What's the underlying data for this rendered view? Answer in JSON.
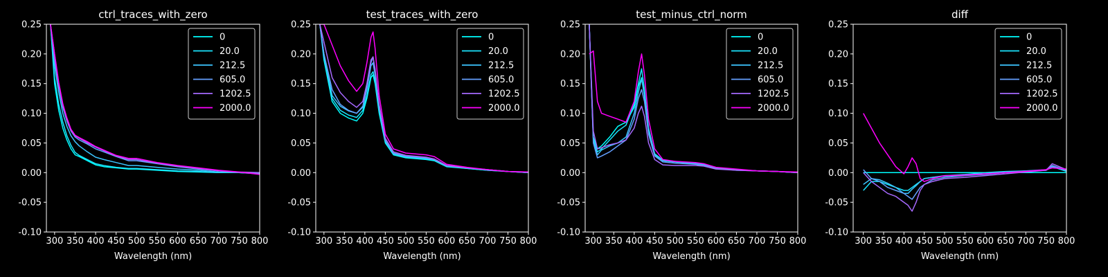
{
  "colors": {
    "background": "#000000",
    "axes": "#ffffff",
    "series": [
      "#00ffff",
      "#1ae5ff",
      "#3bc4ff",
      "#64a0ff",
      "#a669ff",
      "#ff00ff"
    ]
  },
  "chart_data": [
    {
      "type": "line",
      "title": "ctrl_traces_with_zero",
      "xlabel": "Wavelength (nm)",
      "ylabel": "",
      "xlim": [
        280,
        800
      ],
      "ylim": [
        -0.1,
        0.25
      ],
      "xticks": [
        300,
        350,
        400,
        450,
        500,
        550,
        600,
        650,
        700,
        750,
        800
      ],
      "yticks": [
        -0.1,
        -0.05,
        0.0,
        0.05,
        0.1,
        0.15,
        0.2,
        0.25
      ],
      "legend": "top-right",
      "x": [
        290,
        300,
        310,
        320,
        330,
        340,
        350,
        360,
        380,
        400,
        420,
        450,
        480,
        500,
        550,
        600,
        650,
        700,
        750,
        800
      ],
      "series": [
        {
          "name": "0",
          "values": [
            0.25,
            0.15,
            0.105,
            0.075,
            0.055,
            0.04,
            0.03,
            0.027,
            0.02,
            0.013,
            0.01,
            0.008,
            0.006,
            0.006,
            0.004,
            0.002,
            0.001,
            0.0,
            0.0,
            -0.002
          ]
        },
        {
          "name": "20.0",
          "values": [
            0.25,
            0.16,
            0.115,
            0.085,
            0.062,
            0.046,
            0.034,
            0.029,
            0.022,
            0.015,
            0.012,
            0.009,
            0.007,
            0.007,
            0.005,
            0.003,
            0.002,
            0.0,
            0.0,
            -0.002
          ]
        },
        {
          "name": "212.5",
          "values": [
            0.25,
            0.18,
            0.135,
            0.1,
            0.078,
            0.062,
            0.052,
            0.045,
            0.035,
            0.026,
            0.022,
            0.017,
            0.012,
            0.012,
            0.009,
            0.006,
            0.004,
            0.001,
            0.0,
            -0.001
          ]
        },
        {
          "name": "605.0",
          "values": [
            0.25,
            0.19,
            0.145,
            0.11,
            0.087,
            0.07,
            0.06,
            0.055,
            0.048,
            0.04,
            0.035,
            0.027,
            0.02,
            0.02,
            0.015,
            0.01,
            0.006,
            0.003,
            0.0,
            -0.001
          ]
        },
        {
          "name": "1202.5",
          "values": [
            0.25,
            0.2,
            0.15,
            0.115,
            0.09,
            0.072,
            0.062,
            0.058,
            0.05,
            0.043,
            0.037,
            0.028,
            0.022,
            0.022,
            0.016,
            0.011,
            0.007,
            0.003,
            0.001,
            0.0
          ]
        },
        {
          "name": "2000.0",
          "values": [
            0.25,
            0.2,
            0.152,
            0.116,
            0.092,
            0.073,
            0.063,
            0.059,
            0.052,
            0.044,
            0.038,
            0.029,
            0.024,
            0.024,
            0.017,
            0.012,
            0.008,
            0.004,
            0.001,
            -0.003
          ]
        }
      ]
    },
    {
      "type": "line",
      "title": "test_traces_with_zero",
      "xlabel": "Wavelength (nm)",
      "ylabel": "",
      "xlim": [
        280,
        800
      ],
      "ylim": [
        -0.1,
        0.25
      ],
      "xticks": [
        300,
        350,
        400,
        450,
        500,
        550,
        600,
        650,
        700,
        750,
        800
      ],
      "yticks": [
        -0.1,
        -0.05,
        0.0,
        0.05,
        0.1,
        0.15,
        0.2,
        0.25
      ],
      "legend": "top-right",
      "x": [
        290,
        300,
        320,
        340,
        360,
        380,
        395,
        405,
        415,
        420,
        425,
        435,
        450,
        470,
        500,
        550,
        570,
        600,
        650,
        700,
        750,
        800
      ],
      "series": [
        {
          "name": "0",
          "values": [
            0.25,
            0.19,
            0.12,
            0.1,
            0.092,
            0.087,
            0.1,
            0.125,
            0.16,
            0.165,
            0.15,
            0.1,
            0.05,
            0.03,
            0.025,
            0.022,
            0.02,
            0.01,
            0.007,
            0.004,
            0.002,
            0.0
          ]
        },
        {
          "name": "20.0",
          "values": [
            0.25,
            0.195,
            0.125,
            0.105,
            0.097,
            0.093,
            0.105,
            0.13,
            0.165,
            0.17,
            0.155,
            0.105,
            0.052,
            0.031,
            0.026,
            0.023,
            0.021,
            0.011,
            0.007,
            0.004,
            0.002,
            0.0
          ]
        },
        {
          "name": "212.5",
          "values": [
            0.25,
            0.2,
            0.13,
            0.112,
            0.104,
            0.1,
            0.11,
            0.14,
            0.18,
            0.185,
            0.165,
            0.11,
            0.054,
            0.032,
            0.027,
            0.024,
            0.022,
            0.011,
            0.008,
            0.005,
            0.002,
            0.0
          ]
        },
        {
          "name": "605.0",
          "values": [
            0.25,
            0.2,
            0.14,
            0.115,
            0.105,
            0.1,
            0.112,
            0.145,
            0.185,
            0.195,
            0.17,
            0.112,
            0.055,
            0.033,
            0.028,
            0.025,
            0.022,
            0.012,
            0.008,
            0.005,
            0.002,
            0.0
          ]
        },
        {
          "name": "1202.5",
          "values": [
            0.25,
            0.22,
            0.16,
            0.135,
            0.12,
            0.11,
            0.12,
            0.15,
            0.19,
            0.195,
            0.175,
            0.115,
            0.058,
            0.035,
            0.029,
            0.026,
            0.023,
            0.012,
            0.008,
            0.005,
            0.002,
            0.001
          ]
        },
        {
          "name": "2000.0",
          "values": [
            0.25,
            0.25,
            0.215,
            0.18,
            0.155,
            0.137,
            0.15,
            0.185,
            0.228,
            0.237,
            0.21,
            0.13,
            0.065,
            0.04,
            0.033,
            0.03,
            0.027,
            0.014,
            0.009,
            0.005,
            0.002,
            0.001
          ]
        }
      ]
    },
    {
      "type": "line",
      "title": "test_minus_ctrl_norm",
      "xlabel": "Wavelength (nm)",
      "ylabel": "",
      "xlim": [
        280,
        800
      ],
      "ylim": [
        -0.1,
        0.25
      ],
      "xticks": [
        300,
        350,
        400,
        450,
        500,
        550,
        600,
        650,
        700,
        750,
        800
      ],
      "yticks": [
        -0.1,
        -0.05,
        0.0,
        0.05,
        0.1,
        0.15,
        0.2,
        0.25
      ],
      "legend": "top-right",
      "x": [
        290,
        300,
        310,
        320,
        340,
        360,
        380,
        400,
        410,
        418,
        425,
        435,
        450,
        470,
        500,
        550,
        570,
        600,
        650,
        700,
        750,
        800
      ],
      "series": [
        {
          "name": "0",
          "values": [
            0.25,
            0.06,
            0.04,
            0.045,
            0.06,
            0.078,
            0.085,
            0.11,
            0.145,
            0.16,
            0.13,
            0.07,
            0.03,
            0.02,
            0.018,
            0.015,
            0.013,
            0.008,
            0.005,
            0.003,
            0.002,
            0.0
          ]
        },
        {
          "name": "20.0",
          "values": [
            0.25,
            0.055,
            0.035,
            0.04,
            0.055,
            0.07,
            0.08,
            0.115,
            0.15,
            0.175,
            0.14,
            0.075,
            0.032,
            0.021,
            0.019,
            0.016,
            0.014,
            0.008,
            0.005,
            0.003,
            0.002,
            0.0
          ]
        },
        {
          "name": "212.5",
          "values": [
            0.25,
            0.055,
            0.03,
            0.038,
            0.045,
            0.05,
            0.06,
            0.1,
            0.135,
            0.158,
            0.13,
            0.07,
            0.03,
            0.02,
            0.018,
            0.016,
            0.014,
            0.008,
            0.005,
            0.003,
            0.002,
            0.0
          ]
        },
        {
          "name": "605.0",
          "values": [
            0.25,
            0.05,
            0.025,
            0.028,
            0.035,
            0.045,
            0.055,
            0.09,
            0.125,
            0.14,
            0.12,
            0.065,
            0.028,
            0.018,
            0.016,
            0.014,
            0.012,
            0.007,
            0.004,
            0.003,
            0.002,
            0.0
          ]
        },
        {
          "name": "1202.5",
          "values": [
            0.25,
            0.07,
            0.04,
            0.042,
            0.047,
            0.05,
            0.055,
            0.075,
            0.1,
            0.112,
            0.095,
            0.05,
            0.022,
            0.013,
            0.012,
            0.012,
            0.011,
            0.006,
            0.004,
            0.003,
            0.002,
            0.0
          ]
        },
        {
          "name": "2000.0",
          "values": [
            0.2,
            0.205,
            0.12,
            0.1,
            0.095,
            0.09,
            0.085,
            0.12,
            0.17,
            0.2,
            0.165,
            0.09,
            0.04,
            0.022,
            0.019,
            0.017,
            0.015,
            0.009,
            0.006,
            0.003,
            0.002,
            0.001
          ]
        }
      ]
    },
    {
      "type": "line",
      "title": "diff",
      "xlabel": "Wavelength (nm)",
      "ylabel": "",
      "xlim": [
        275,
        800
      ],
      "ylim": [
        -0.1,
        0.25
      ],
      "xticks": [
        300,
        350,
        400,
        450,
        500,
        550,
        600,
        650,
        700,
        750,
        800
      ],
      "yticks": [
        -0.1,
        -0.05,
        0.0,
        0.05,
        0.1,
        0.15,
        0.2,
        0.25
      ],
      "legend": "top-right",
      "x": [
        300,
        320,
        340,
        360,
        380,
        400,
        410,
        420,
        430,
        440,
        450,
        470,
        500,
        550,
        600,
        650,
        700,
        750,
        765,
        800
      ],
      "series": [
        {
          "name": "0",
          "values": [
            0.0,
            0.0,
            0.0,
            0.0,
            0.0,
            0.0,
            0.0,
            0.0,
            0.0,
            0.0,
            0.0,
            0.0,
            0.0,
            0.0,
            0.0,
            0.0,
            0.0,
            0.0,
            0.0,
            0.0
          ]
        },
        {
          "name": "20.0",
          "values": [
            -0.03,
            -0.015,
            -0.015,
            -0.02,
            -0.025,
            -0.03,
            -0.03,
            -0.025,
            -0.02,
            -0.015,
            -0.01,
            -0.008,
            -0.005,
            -0.003,
            0.0,
            0.002,
            0.003,
            0.004,
            0.01,
            0.002
          ]
        },
        {
          "name": "212.5",
          "values": [
            -0.02,
            -0.01,
            -0.012,
            -0.018,
            -0.025,
            -0.035,
            -0.035,
            -0.028,
            -0.022,
            -0.015,
            -0.01,
            -0.008,
            -0.006,
            -0.004,
            -0.002,
            0.0,
            0.002,
            0.004,
            0.01,
            0.003
          ]
        },
        {
          "name": "605.0",
          "values": [
            0.005,
            -0.01,
            -0.015,
            -0.025,
            -0.03,
            -0.035,
            -0.04,
            -0.045,
            -0.035,
            -0.025,
            -0.02,
            -0.012,
            -0.008,
            -0.005,
            -0.003,
            0.0,
            0.003,
            0.005,
            0.012,
            0.004
          ]
        },
        {
          "name": "1202.5",
          "values": [
            0.0,
            -0.015,
            -0.025,
            -0.035,
            -0.04,
            -0.05,
            -0.055,
            -0.065,
            -0.05,
            -0.03,
            -0.02,
            -0.015,
            -0.01,
            -0.008,
            -0.005,
            -0.002,
            0.001,
            0.004,
            0.015,
            0.005
          ]
        },
        {
          "name": "2000.0",
          "values": [
            0.1,
            0.075,
            0.05,
            0.03,
            0.01,
            -0.002,
            0.01,
            0.025,
            0.015,
            -0.01,
            -0.015,
            -0.01,
            -0.005,
            -0.004,
            -0.002,
            0.0,
            0.002,
            0.005,
            0.008,
            0.006
          ]
        }
      ]
    }
  ]
}
